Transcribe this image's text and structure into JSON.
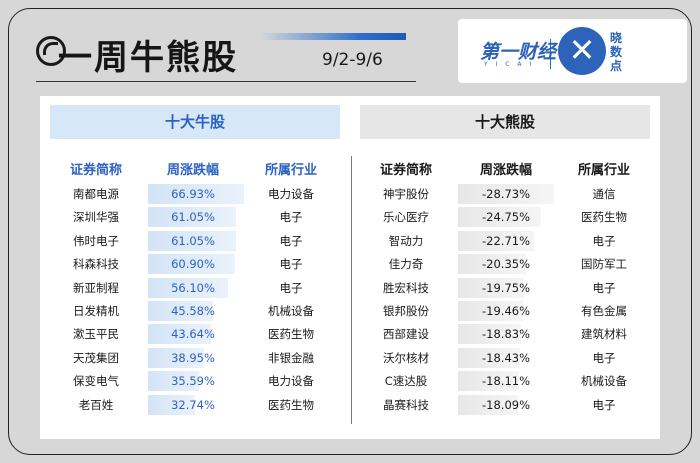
{
  "header": {
    "title": "一周牛熊股",
    "date_range": "9/2-9/6"
  },
  "logo": {
    "left_text": "第一财经",
    "sub_text": "Y I C A I",
    "right_text": "晓数点"
  },
  "bull": {
    "banner": "十大牛股",
    "headers": [
      "证券简称",
      "周涨跌幅",
      "所属行业"
    ],
    "rows": [
      {
        "name": "南都电源",
        "change": "66.93%",
        "industry": "电力设备",
        "value": 66.93
      },
      {
        "name": "深圳华强",
        "change": "61.05%",
        "industry": "电子",
        "value": 61.05
      },
      {
        "name": "伟时电子",
        "change": "61.05%",
        "industry": "电子",
        "value": 61.05
      },
      {
        "name": "科森科技",
        "change": "60.90%",
        "industry": "电子",
        "value": 60.9
      },
      {
        "name": "新亚制程",
        "change": "56.10%",
        "industry": "电子",
        "value": 56.1
      },
      {
        "name": "日发精机",
        "change": "45.58%",
        "industry": "机械设备",
        "value": 45.58
      },
      {
        "name": "漱玉平民",
        "change": "43.64%",
        "industry": "医药生物",
        "value": 43.64
      },
      {
        "name": "天茂集团",
        "change": "38.95%",
        "industry": "非银金融",
        "value": 38.95
      },
      {
        "name": "保变电气",
        "change": "35.59%",
        "industry": "电力设备",
        "value": 35.59
      },
      {
        "name": "老百姓",
        "change": "32.74%",
        "industry": "医药生物",
        "value": 32.74
      }
    ]
  },
  "bear": {
    "banner": "十大熊股",
    "headers": [
      "证券简称",
      "周涨跌幅",
      "所属行业"
    ],
    "rows": [
      {
        "name": "神宇股份",
        "change": "-28.73%",
        "industry": "通信",
        "value": -28.73
      },
      {
        "name": "乐心医疗",
        "change": "-24.75%",
        "industry": "医药生物",
        "value": -24.75
      },
      {
        "name": "智动力",
        "change": "-22.71%",
        "industry": "电子",
        "value": -22.71
      },
      {
        "name": "佳力奇",
        "change": "-20.35%",
        "industry": "国防军工",
        "value": -20.35
      },
      {
        "name": "胜宏科技",
        "change": "-19.75%",
        "industry": "电子",
        "value": -19.75
      },
      {
        "name": "银邦股份",
        "change": "-19.46%",
        "industry": "有色金属",
        "value": -19.46
      },
      {
        "name": "西部建设",
        "change": "-18.83%",
        "industry": "建筑材料",
        "value": -18.83
      },
      {
        "name": "沃尔核材",
        "change": "-18.43%",
        "industry": "电子",
        "value": -18.43
      },
      {
        "name": "C速达股",
        "change": "-18.11%",
        "industry": "机械设备",
        "value": -18.11
      },
      {
        "name": "晶赛科技",
        "change": "-18.09%",
        "industry": "电子",
        "value": -18.09
      }
    ]
  },
  "colors": {
    "bull_accent": "#2b62c4",
    "bull_banner_bg": "#d6e7f7",
    "bear_banner_bg": "#e6e6e6",
    "page_bg": "#d7d7d7"
  }
}
